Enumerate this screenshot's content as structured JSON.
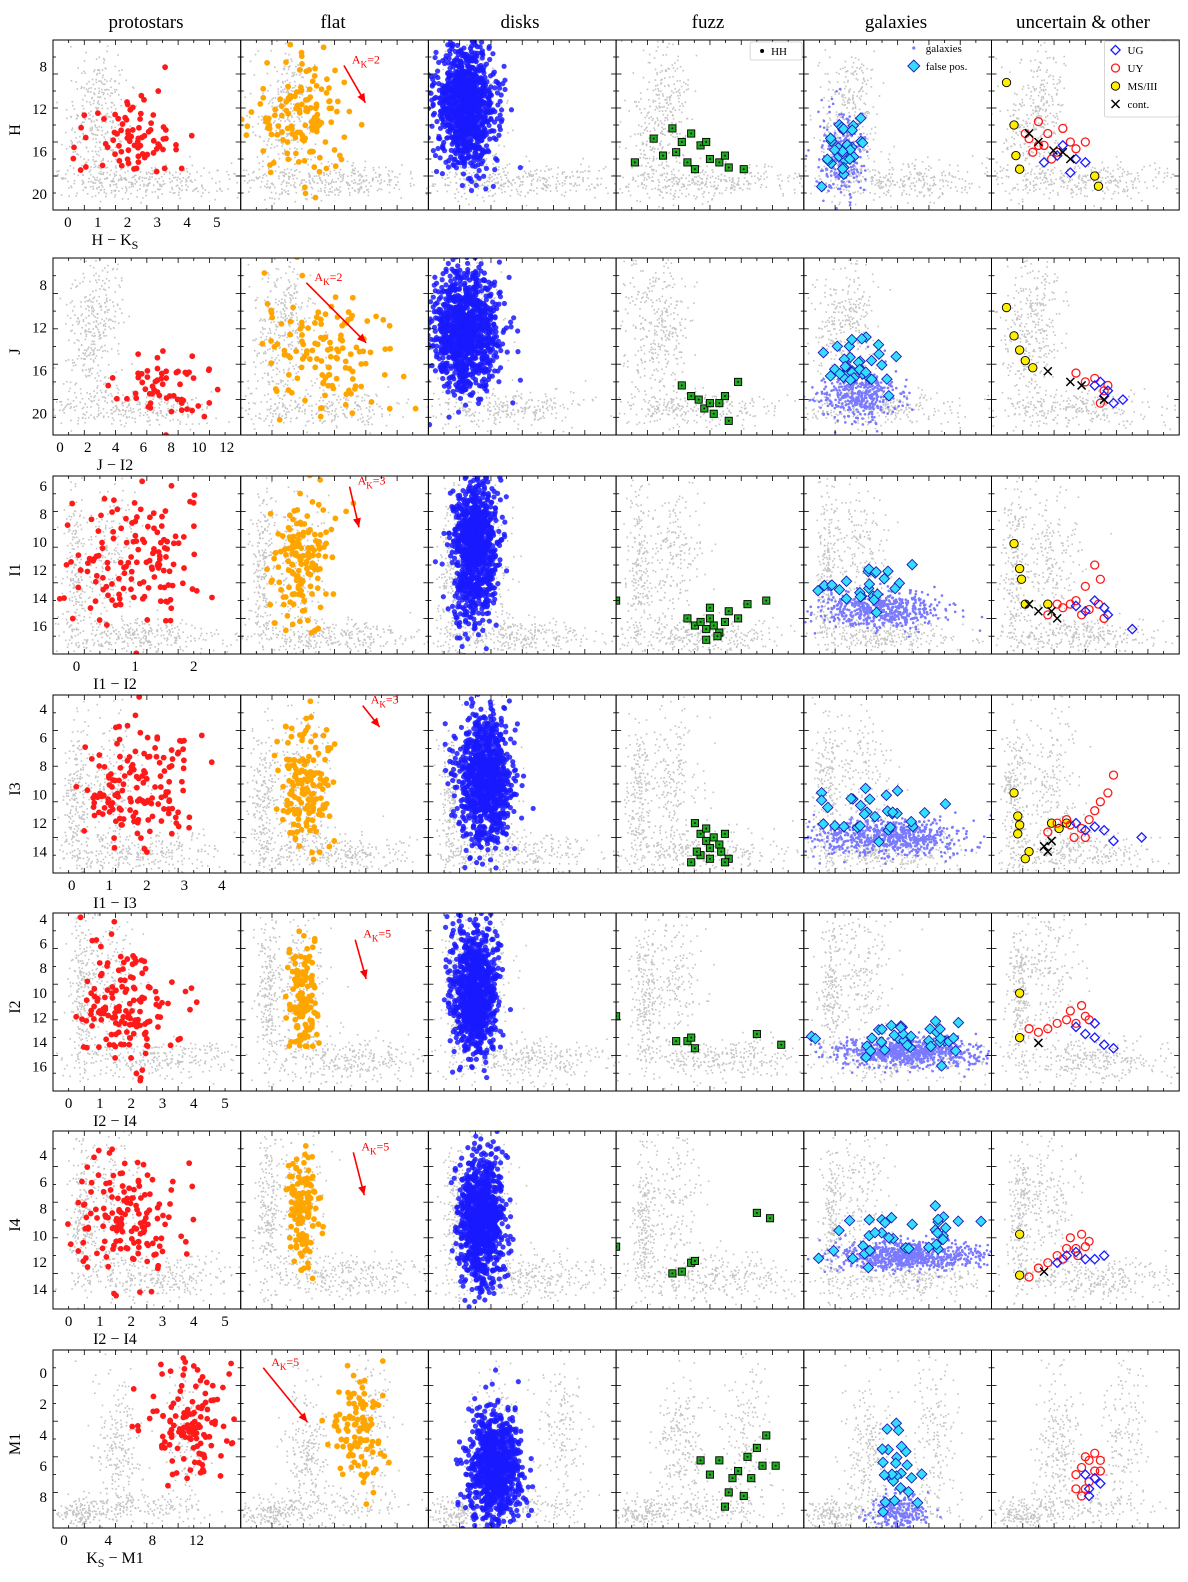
{
  "columns": [
    "protostars",
    "flat",
    "disks",
    "fuzz",
    "galaxies",
    "uncertain & other"
  ],
  "legends": {
    "fuzz": [
      {
        "label": "HH",
        "marker": "dot"
      }
    ],
    "galaxies": [
      {
        "label": "galaxies",
        "marker": "small-dot"
      },
      {
        "label": "false pos.",
        "marker": "diamond-filled"
      }
    ],
    "uncertain": [
      {
        "label": "UG",
        "marker": "diamond-open-blue"
      },
      {
        "label": "UY",
        "marker": "circle-open-red"
      },
      {
        "label": "MS/III",
        "marker": "circle-yellow"
      },
      {
        "label": "cont.",
        "marker": "x-black"
      }
    ]
  },
  "colors": {
    "field": "#c4c4c4",
    "protostars": "#ff1a1a",
    "flat": "#ffa500",
    "disks": "#1a1aff",
    "fuzz": "#1faa1f",
    "galaxies": "#7a7aff",
    "false_pos": "#33ddff",
    "UG": "#1a1aff",
    "UY": "#ff1a1a",
    "MS_III": "#ffee00",
    "cont": "#000000",
    "arrow": "#ff0000"
  },
  "chart_data": [
    {
      "type": "scatter",
      "ylabel": "H",
      "xlabel": "H − K_S",
      "yticks": [
        "8",
        "12",
        "16",
        "20"
      ],
      "xticks": [
        "0",
        "1",
        "2",
        "3",
        "4",
        "5"
      ],
      "xlim": [
        -0.5,
        5.8
      ],
      "ylim": [
        21.5,
        5.5
      ],
      "extinction_label": "A_K=2",
      "extinction_vector": {
        "dx": 0.72,
        "dy": 3.5
      }
    },
    {
      "type": "scatter",
      "ylabel": "J",
      "xlabel": "J − I2",
      "yticks": [
        "8",
        "12",
        "16",
        "20"
      ],
      "xticks": [
        "0",
        "2",
        "4",
        "6",
        "8",
        "10",
        "12"
      ],
      "xlim": [
        -0.5,
        13
      ],
      "ylim": [
        22,
        5.5
      ],
      "extinction_label": "A_K=2",
      "extinction_vector": {
        "dx": 4.3,
        "dy": 5.6
      }
    },
    {
      "type": "scatter",
      "ylabel": "I1",
      "xlabel": "I1 − I2",
      "yticks": [
        "6",
        "8",
        "10",
        "12",
        "14",
        "16"
      ],
      "xticks": [
        "0",
        "1",
        "2"
      ],
      "xlim": [
        -0.4,
        2.8
      ],
      "ylim": [
        18,
        5.3
      ],
      "extinction_label": "A_K=3",
      "extinction_vector": {
        "dx": 0.16,
        "dy": 2.9
      }
    },
    {
      "type": "scatter",
      "ylabel": "I3",
      "xlabel": "I1 − I3",
      "yticks": [
        "4",
        "6",
        "8",
        "10",
        "12",
        "14"
      ],
      "xticks": [
        "0",
        "1",
        "2",
        "3",
        "4"
      ],
      "xlim": [
        -0.5,
        4.5
      ],
      "ylim": [
        15.5,
        3
      ],
      "extinction_label": "A_K=3",
      "extinction_vector": {
        "dx": 0.45,
        "dy": 1.5
      }
    },
    {
      "type": "scatter",
      "ylabel": "I2",
      "xlabel": "I2 − I4",
      "yticks": [
        "4",
        "6",
        "8",
        "10",
        "12",
        "14",
        "16"
      ],
      "xticks": [
        "0",
        "1",
        "2",
        "3",
        "4",
        "5"
      ],
      "xlim": [
        -0.5,
        5.5
      ],
      "ylim": [
        18,
        3.5
      ],
      "extinction_label": "A_K=5",
      "extinction_vector": {
        "dx": 0.35,
        "dy": 3.2
      }
    },
    {
      "type": "scatter",
      "ylabel": "I4",
      "xlabel": "I2 − I4",
      "yticks": [
        "4",
        "6",
        "8",
        "10",
        "12",
        "14"
      ],
      "xticks": [
        "0",
        "1",
        "2",
        "3",
        "4",
        "5"
      ],
      "xlim": [
        -0.5,
        5.5
      ],
      "ylim": [
        15.5,
        2.2
      ],
      "extinction_label": "A_K=5",
      "extinction_vector": {
        "dx": 0.35,
        "dy": 3.2
      }
    },
    {
      "type": "scatter",
      "ylabel": "M1",
      "xlabel": "K_S − M1",
      "yticks": [
        "0",
        "2",
        "4",
        "6",
        "8"
      ],
      "xticks": [
        "0",
        "4",
        "8",
        "12"
      ],
      "xlim": [
        -1,
        16
      ],
      "ylim": [
        10,
        -1.5
      ],
      "extinction_label": "A_K=5",
      "extinction_vector": {
        "dx": 4,
        "dy": 3.5
      }
    }
  ]
}
